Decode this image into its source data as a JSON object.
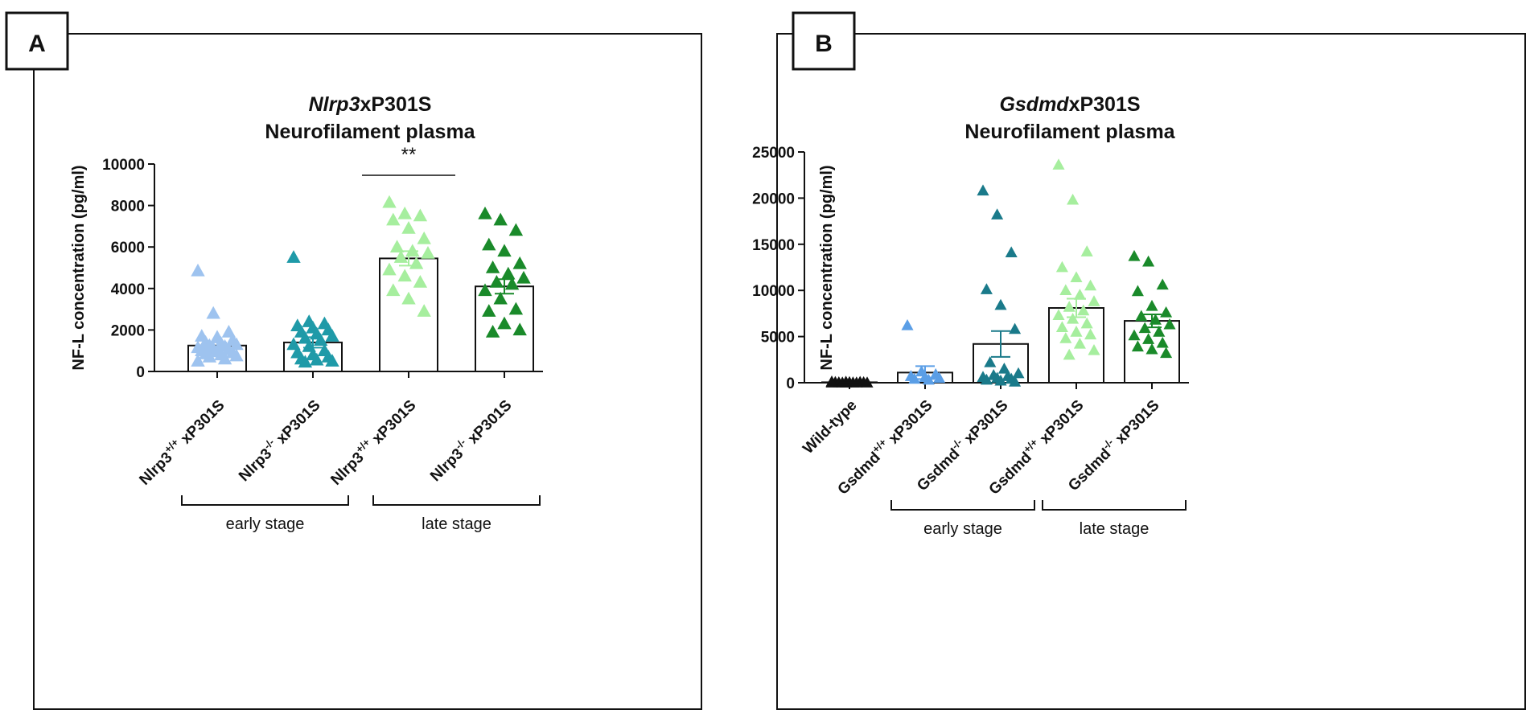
{
  "panels": [
    {
      "id": "A",
      "label": "A",
      "title_italic": "Nlrp3",
      "title_rest": "xP301S",
      "subtitle": "Neurofilament plasma",
      "ylabel": "NF-L concentration (pg/ml)",
      "stage_labels": [
        "early stage",
        "late stage"
      ],
      "significance": "**"
    },
    {
      "id": "B",
      "label": "B",
      "title_italic": "Gsdmd",
      "title_rest": "xP301S",
      "subtitle": "Neurofilament plasma",
      "ylabel": "NF-L concentration (pg/ml)",
      "stage_labels": [
        "early stage",
        "late stage"
      ]
    }
  ],
  "chart_data": [
    {
      "type": "bar",
      "title": "Nlrp3xP301S Neurofilament plasma",
      "ylabel": "NF-L concentration (pg/ml)",
      "ylim": [
        0,
        10000
      ],
      "yticks": [
        0,
        2000,
        4000,
        6000,
        8000,
        10000
      ],
      "categories": [
        {
          "base": "Nlrp3",
          "sup": "+/+",
          "suffix": " xP301S"
        },
        {
          "base": "Nlrp3",
          "sup": "-/-",
          "suffix": " xP301S"
        },
        {
          "base": "Nlrp3",
          "sup": "+/+",
          "suffix": " xP301S"
        },
        {
          "base": "Nlrp3",
          "sup": "-/-",
          "suffix": " xP301S"
        }
      ],
      "values": [
        1250,
        1400,
        5450,
        4100
      ],
      "sem": [
        150,
        250,
        350,
        350
      ],
      "colors": [
        "#9ec3ef",
        "#1f9aa8",
        "#a6ee9e",
        "#1a8a2a"
      ],
      "points": [
        [
          4850,
          2800,
          1900,
          1700,
          1650,
          1500,
          1400,
          1350,
          1300,
          1250,
          1200,
          1150,
          1100,
          1050,
          1000,
          950,
          900,
          850,
          800,
          750,
          700,
          600,
          500
        ],
        [
          5500,
          2400,
          2300,
          2200,
          2100,
          2000,
          1900,
          1800,
          1700,
          1600,
          1500,
          1300,
          1200,
          1000,
          900,
          800,
          700,
          600,
          550,
          500,
          450
        ],
        [
          8150,
          7600,
          7500,
          7300,
          6900,
          6400,
          6000,
          5800,
          5700,
          5500,
          5200,
          4900,
          4600,
          4300,
          3900,
          3500,
          2900
        ],
        [
          7600,
          7300,
          6800,
          6100,
          5800,
          5200,
          5000,
          4700,
          4500,
          4300,
          4200,
          3900,
          3500,
          3000,
          2900,
          2300,
          2000,
          1900
        ]
      ],
      "groups": [
        {
          "label": "early stage",
          "from": 0,
          "to": 1
        },
        {
          "label": "late stage",
          "from": 2,
          "to": 3
        }
      ],
      "significance": {
        "label": "**",
        "over": 2
      }
    },
    {
      "type": "bar",
      "title": "GsdmdxP301S Neurofilament plasma",
      "ylabel": "NF-L concentration (pg/ml)",
      "ylim": [
        0,
        25000
      ],
      "yticks": [
        0,
        5000,
        10000,
        15000,
        20000,
        25000
      ],
      "categories": [
        {
          "base": "Wild-type",
          "sup": "",
          "suffix": ""
        },
        {
          "base": "Gsdmd",
          "sup": "+/+",
          "suffix": " xP301S"
        },
        {
          "base": "Gsdmd",
          "sup": "-/-",
          "suffix": " xP301S"
        },
        {
          "base": "Gsdmd",
          "sup": "+/+",
          "suffix": " xP301S"
        },
        {
          "base": "Gsdmd",
          "sup": "-/-",
          "suffix": " xP301S"
        }
      ],
      "values": [
        50,
        1100,
        4200,
        8100,
        6700
      ],
      "sem": [
        20,
        700,
        1400,
        1000,
        700
      ],
      "colors": [
        "#111111",
        "#5a9ee6",
        "#1a7a8a",
        "#a6ee9e",
        "#1a8a2a"
      ],
      "points": [
        [
          100,
          80,
          60,
          50,
          40,
          30,
          20,
          10,
          0,
          0,
          0,
          0,
          0
        ],
        [
          6200,
          1200,
          900,
          700,
          600,
          500,
          400,
          300
        ],
        [
          20800,
          18200,
          14100,
          10100,
          8400,
          5800,
          2200,
          1500,
          1000,
          800,
          700,
          600,
          500,
          400,
          300,
          200,
          100
        ],
        [
          23600,
          19800,
          14200,
          12500,
          11400,
          10500,
          10000,
          9500,
          8800,
          8200,
          7800,
          7300,
          6900,
          6400,
          6000,
          5500,
          5200,
          4800,
          4200,
          3500,
          3000
        ],
        [
          13700,
          13100,
          10600,
          9900,
          8300,
          7600,
          7200,
          6800,
          6300,
          5900,
          5500,
          5100,
          4700,
          4300,
          3900,
          3600,
          3200
        ]
      ],
      "groups": [
        {
          "label": "early stage",
          "from": 1,
          "to": 2
        },
        {
          "label": "late stage",
          "from": 3,
          "to": 4
        }
      ]
    }
  ]
}
